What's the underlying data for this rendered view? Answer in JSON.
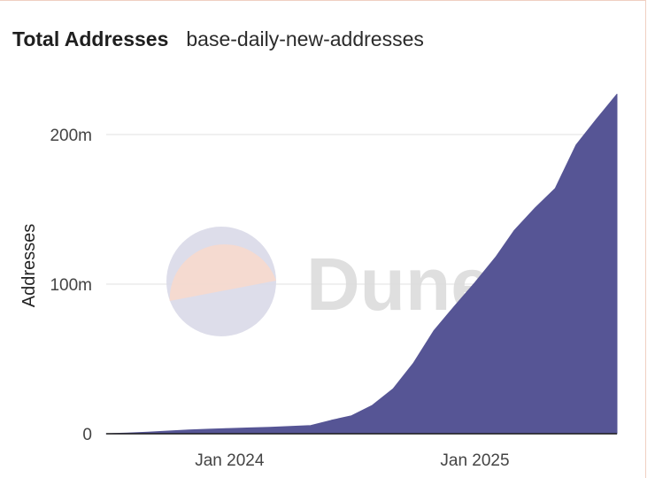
{
  "header": {
    "title": "Total Addresses",
    "subtitle": "base-daily-new-addresses"
  },
  "watermark": {
    "text": "Dune",
    "top_color": "#f6d9cf",
    "bottom_color": "#d9d9e8"
  },
  "colors": {
    "area_fill": "#565595",
    "grid": "#e2e2e2",
    "baseline": "#1a1a1a"
  },
  "chart_data": {
    "type": "area",
    "title": "Total Addresses",
    "subtitle": "base-daily-new-addresses",
    "xlabel": "",
    "ylabel": "Addresses",
    "x_ticks": [
      {
        "label": "Jan 2024",
        "date": "2024-01-01"
      },
      {
        "label": "Jan 2025",
        "date": "2025-01-01"
      }
    ],
    "y_ticks": [
      {
        "label": "0",
        "value": 0
      },
      {
        "label": "100m",
        "value": 100000000
      },
      {
        "label": "200m",
        "value": 200000000
      }
    ],
    "xlim": [
      "2023-07-01",
      "2025-08-01"
    ],
    "ylim": [
      0,
      230000000
    ],
    "grid": true,
    "legend": "none",
    "series": [
      {
        "x": [
          "2023-07-01",
          "2023-08-01",
          "2023-09-01",
          "2023-10-01",
          "2023-11-01",
          "2023-12-01",
          "2024-01-01",
          "2024-02-01",
          "2024-03-01",
          "2024-04-01",
          "2024-05-01",
          "2024-06-01",
          "2024-07-01",
          "2024-08-01",
          "2024-09-01",
          "2024-10-01",
          "2024-11-01",
          "2024-12-01",
          "2025-01-01",
          "2025-02-01",
          "2025-03-01",
          "2025-04-01",
          "2025-05-01",
          "2025-06-01",
          "2025-07-01",
          "2025-08-01"
        ],
        "values": [
          0,
          400000,
          1000000,
          1800000,
          2500000,
          3000000,
          3500000,
          3900000,
          4300000,
          4900000,
          5500000,
          9000000,
          12000000,
          19000000,
          30000000,
          47000000,
          69000000,
          85000000,
          101000000,
          118000000,
          136000000,
          151000000,
          164000000,
          193000000,
          210000000,
          227000000
        ]
      }
    ]
  }
}
